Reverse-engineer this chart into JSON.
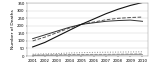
{
  "years": [
    2001,
    2002,
    2003,
    2004,
    2005,
    2006,
    2007,
    2008,
    2009,
    2010
  ],
  "series": {
    "0-14": [
      4,
      5,
      5,
      6,
      6,
      7,
      7,
      8,
      9,
      9
    ],
    "15-24": [
      6,
      7,
      8,
      9,
      10,
      11,
      11,
      12,
      13,
      14
    ],
    "25-39": [
      12,
      14,
      16,
      20,
      22,
      24,
      25,
      26,
      27,
      28
    ],
    "40-64": [
      100,
      125,
      155,
      185,
      210,
      225,
      240,
      250,
      255,
      258
    ],
    "65-79": [
      115,
      140,
      165,
      190,
      210,
      220,
      230,
      235,
      238,
      230
    ],
    ">=80": [
      60,
      90,
      130,
      170,
      210,
      245,
      280,
      310,
      335,
      355
    ]
  },
  "line_styles": {
    "0-14": {
      "color": "#888888",
      "linestyle": "-",
      "linewidth": 0.6,
      "marker": null,
      "markersize": 0
    },
    "15-24": {
      "color": "#888888",
      "linestyle": "--",
      "linewidth": 0.6,
      "marker": null,
      "markersize": 0
    },
    "25-39": {
      "color": "#888888",
      "linestyle": ":",
      "linewidth": 0.7,
      "marker": null,
      "markersize": 0
    },
    "40-64": {
      "color": "#555555",
      "linestyle": "--",
      "linewidth": 0.7,
      "marker": null,
      "markersize": 0
    },
    "65-79": {
      "color": "#333333",
      "linestyle": "-",
      "linewidth": 0.7,
      "marker": null,
      "markersize": 0
    },
    ">=80": {
      "color": "#111111",
      "linestyle": "-",
      "linewidth": 0.8,
      "marker": null,
      "markersize": 0
    }
  },
  "ylim": [
    0,
    350
  ],
  "yticks": [
    0,
    50,
    100,
    150,
    200,
    250,
    300,
    350
  ],
  "ylabel": "Number of Deaths",
  "ylabel_fontsize": 3.2,
  "tick_fontsize": 2.8,
  "legend_fontsize": 2.5,
  "background_color": "#ffffff",
  "grid_color": "#cccccc"
}
